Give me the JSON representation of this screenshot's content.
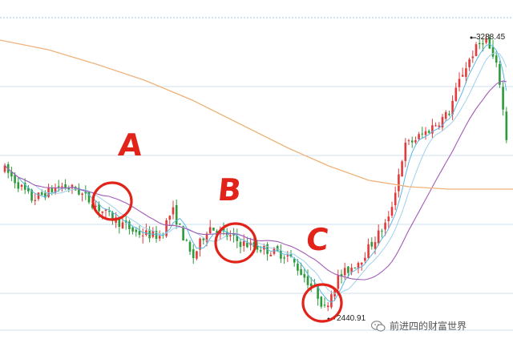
{
  "chart_data": {
    "type": "candlestick",
    "title": "",
    "xlabel": "",
    "ylabel": "",
    "grid": true,
    "high_label": "3288.45",
    "low_label": "2440.91",
    "annotations": [
      "A",
      "B",
      "C"
    ],
    "colors": {
      "up": "#e23b3b",
      "down": "#2e9b3a",
      "ma_fast": "#58b7e6",
      "ma_mid": "#9fd0ea",
      "ma_purple": "#a25bb5",
      "ma_long": "#f0b27a",
      "circle": "#e2231a",
      "grid": "#cfe1ef",
      "top_line": "#9bc9ee"
    },
    "series": [
      {
        "name": "",
        "kind": "ohlc"
      },
      {
        "name": "",
        "kind": "ma_short"
      },
      {
        "name": "",
        "kind": "ma_mid"
      },
      {
        "name": "",
        "kind": "ma_purple"
      },
      {
        "name": "",
        "kind": "ma_long"
      }
    ]
  },
  "watermark": {
    "text": "前进四的财富世界",
    "icon": "wechat-icon"
  }
}
